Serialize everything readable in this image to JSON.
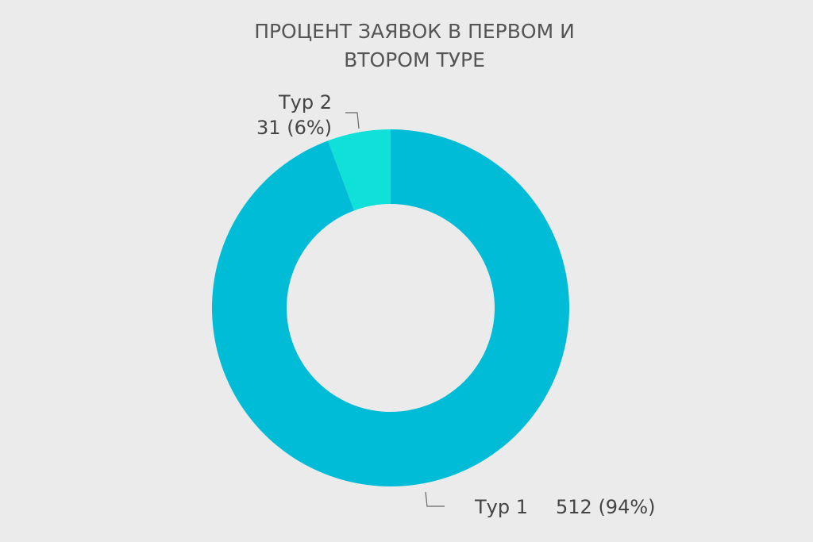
{
  "chart_data": {
    "type": "donut",
    "title": "ПРОЦЕНТ ЗАЯВОК В ПЕРВОМ И ВТОРОМ ТУРЕ",
    "categories": [
      "Тур 1",
      "Тур 2"
    ],
    "values": [
      512,
      31
    ],
    "value_labels": [
      "512 (94%)",
      "31 (6%)"
    ],
    "colors": [
      "#00bcd6",
      "#0fe0d8"
    ]
  }
}
